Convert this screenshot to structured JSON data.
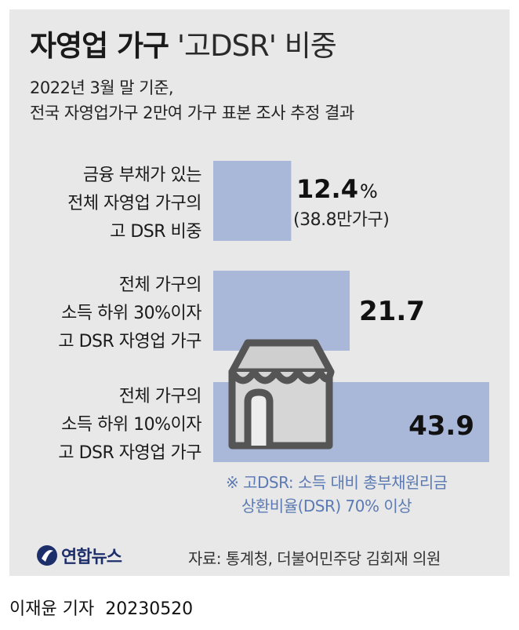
{
  "header": {
    "title_bold": "자영업 가구",
    "title_light": "'고DSR' 비중",
    "subtitle_line1": "2022년 3월 말 기준,",
    "subtitle_line2": "전국 자영업가구 2만여 가구 표본 조사 추정 결과"
  },
  "chart_data": {
    "type": "bar",
    "orientation": "horizontal",
    "unit": "%",
    "categories": [
      [
        "금융 부채가 있는",
        "전체 자영업 가구의",
        "고 DSR 비중"
      ],
      [
        "전체 가구의",
        "소득 하위 30%이자",
        "고 DSR 자영업 가구"
      ],
      [
        "전체 가구의",
        "소득 하위 10%이자",
        "고 DSR 자영업 가구"
      ]
    ],
    "values": [
      12.4,
      21.7,
      43.9
    ],
    "value_labels": [
      "12.4",
      "21.7",
      "43.9"
    ],
    "first_label_suffix": "%",
    "first_label_sub": "(38.8만가구)",
    "xlim": [
      0,
      43.9
    ],
    "grid": false,
    "legend": "none",
    "bar_color": "#a9b8d9"
  },
  "note": {
    "line1": "※ 고DSR: 소득 대비 총부채원리금",
    "line2": "상환비율(DSR) 70% 이상"
  },
  "footer": {
    "logo_text": "연합뉴스",
    "source": "자료: 통계청, 더불어민주당 김회재 의원",
    "reporter": "이재윤 기자",
    "date": "20230520"
  },
  "colors": {
    "panel": "#e8e8e8",
    "bar": "#a9b8d9",
    "note": "#5b7ab3",
    "logo": "#1c2f6b"
  },
  "icons": [
    "store-icon",
    "yonhap-logo-icon"
  ]
}
